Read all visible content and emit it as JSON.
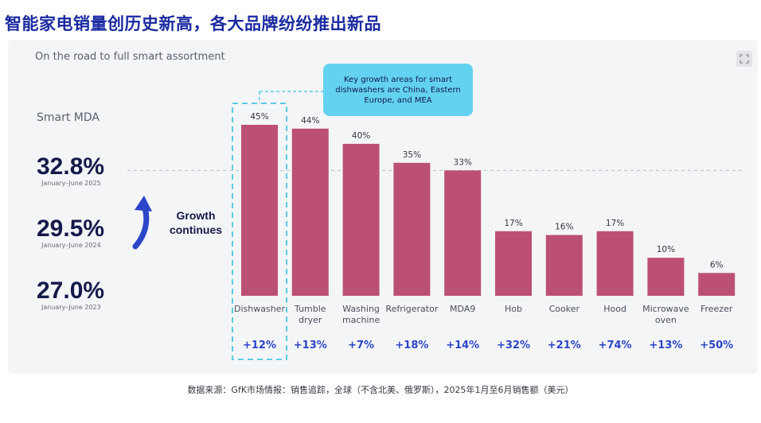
{
  "headline": "智能家电销量创历史新高，各大品牌纷纷推出新品",
  "chart_data": {
    "type": "bar",
    "title": "On the road to full smart assortment",
    "ylabel": "",
    "xlabel": "",
    "ylim": [
      0,
      50
    ],
    "categories": [
      "Dishwasher",
      "Tumble dryer",
      "Washing machine",
      "Refrigerator",
      "MDA9",
      "Hob",
      "Cooker",
      "Hood",
      "Microwave oven",
      "Freezer"
    ],
    "category_lines": [
      [
        "Dishwasher"
      ],
      [
        "Tumble",
        "dryer"
      ],
      [
        "Washing",
        "machine"
      ],
      [
        "Refrigerator"
      ],
      [
        "MDA9"
      ],
      [
        "Hob"
      ],
      [
        "Cooker"
      ],
      [
        "Hood"
      ],
      [
        "Microwave",
        "oven"
      ],
      [
        "Freezer"
      ]
    ],
    "values": [
      45,
      44,
      40,
      35,
      33,
      17,
      16,
      17,
      10,
      6
    ],
    "value_labels": [
      "45%",
      "44%",
      "40%",
      "35%",
      "33%",
      "17%",
      "16%",
      "17%",
      "10%",
      "6%"
    ],
    "growth": [
      "+12%",
      "+13%",
      "+7%",
      "+18%",
      "+14%",
      "+32%",
      "+21%",
      "+74%",
      "+13%",
      "+50%"
    ],
    "reference_line": 33,
    "highlight_category": "Dishwasher",
    "bar_color": "#bc4f75",
    "growth_color": "#2b46c8",
    "highlight_color": "#5ccbe3"
  },
  "smart_mda": {
    "label": "Smart MDA",
    "stats": [
      {
        "value": "32.8%",
        "period": "January–June 2025"
      },
      {
        "value": "29.5%",
        "period": "January–June 2024"
      },
      {
        "value": "27.0%",
        "period": "January–June 2023"
      }
    ],
    "growth_label_1": "Growth",
    "growth_label_2": "continues"
  },
  "callout": "Key growth areas for smart dishwashers are China, Eastern Europe, and MEA",
  "source": "数据来源：GfK市场情报：销售追踪，全球（不含北美、俄罗斯），2025年1月至6月销售额（美元）",
  "colors": {
    "headline": "#1a2aa0",
    "navy": "#141a4a",
    "arrow": "#2b46c8",
    "callout_bg": "#63d2f1"
  }
}
